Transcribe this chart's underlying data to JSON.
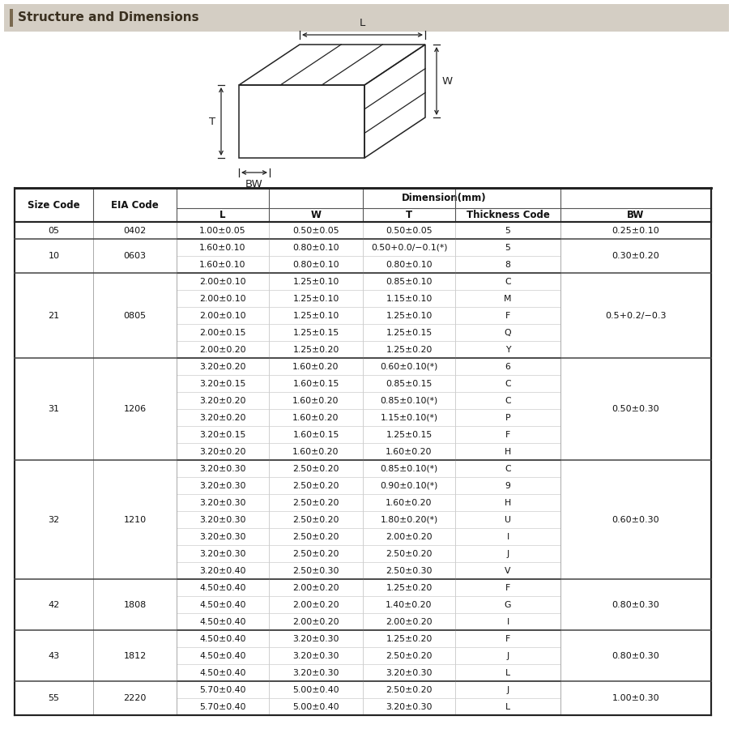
{
  "title": "Structure and Dimensions",
  "title_bar_color": "#d4cec4",
  "title_accent_color": "#7a6a50",
  "bg_color": "#ffffff",
  "rows": [
    [
      "05",
      "0402",
      "1.00±0.05",
      "0.50±0.05",
      "0.50±0.05",
      "5",
      "0.25±0.10"
    ],
    [
      "10",
      "0603",
      "1.60±0.10",
      "0.80±0.10",
      "0.50+0.0/−0.1(*)",
      "5",
      "0.30±0.20"
    ],
    [
      "",
      "",
      "1.60±0.10",
      "0.80±0.10",
      "0.80±0.10",
      "8",
      ""
    ],
    [
      "21",
      "0805",
      "2.00±0.10",
      "1.25±0.10",
      "0.85±0.10",
      "C",
      "0.5+0.2/−0.3"
    ],
    [
      "",
      "",
      "2.00±0.10",
      "1.25±0.10",
      "1.15±0.10",
      "M",
      ""
    ],
    [
      "",
      "",
      "2.00±0.10",
      "1.25±0.10",
      "1.25±0.10",
      "F",
      ""
    ],
    [
      "",
      "",
      "2.00±0.15",
      "1.25±0.15",
      "1.25±0.15",
      "Q",
      ""
    ],
    [
      "",
      "",
      "2.00±0.20",
      "1.25±0.20",
      "1.25±0.20",
      "Y",
      ""
    ],
    [
      "31",
      "1206",
      "3.20±0.20",
      "1.60±0.20",
      "0.60±0.10(*)",
      "6",
      "0.50±0.30"
    ],
    [
      "",
      "",
      "3.20±0.15",
      "1.60±0.15",
      "0.85±0.15",
      "C",
      ""
    ],
    [
      "",
      "",
      "3.20±0.20",
      "1.60±0.20",
      "0.85±0.10(*)",
      "C",
      ""
    ],
    [
      "",
      "",
      "3.20±0.20",
      "1.60±0.20",
      "1.15±0.10(*)",
      "P",
      ""
    ],
    [
      "",
      "",
      "3.20±0.15",
      "1.60±0.15",
      "1.25±0.15",
      "F",
      ""
    ],
    [
      "",
      "",
      "3.20±0.20",
      "1.60±0.20",
      "1.60±0.20",
      "H",
      ""
    ],
    [
      "32",
      "1210",
      "3.20±0.30",
      "2.50±0.20",
      "0.85±0.10(*)",
      "C",
      "0.60±0.30"
    ],
    [
      "",
      "",
      "3.20±0.30",
      "2.50±0.20",
      "0.90±0.10(*)",
      "9",
      ""
    ],
    [
      "",
      "",
      "3.20±0.30",
      "2.50±0.20",
      "1.60±0.20",
      "H",
      ""
    ],
    [
      "",
      "",
      "3.20±0.30",
      "2.50±0.20",
      "1.80±0.20(*)",
      "U",
      ""
    ],
    [
      "",
      "",
      "3.20±0.30",
      "2.50±0.20",
      "2.00±0.20",
      "I",
      ""
    ],
    [
      "",
      "",
      "3.20±0.30",
      "2.50±0.20",
      "2.50±0.20",
      "J",
      ""
    ],
    [
      "",
      "",
      "3.20±0.40",
      "2.50±0.30",
      "2.50±0.30",
      "V",
      ""
    ],
    [
      "42",
      "1808",
      "4.50±0.40",
      "2.00±0.20",
      "1.25±0.20",
      "F",
      "0.80±0.30"
    ],
    [
      "",
      "",
      "4.50±0.40",
      "2.00±0.20",
      "1.40±0.20",
      "G",
      ""
    ],
    [
      "",
      "",
      "4.50±0.40",
      "2.00±0.20",
      "2.00±0.20",
      "I",
      ""
    ],
    [
      "43",
      "1812",
      "4.50±0.40",
      "3.20±0.30",
      "1.25±0.20",
      "F",
      "0.80±0.30"
    ],
    [
      "",
      "",
      "4.50±0.40",
      "3.20±0.30",
      "2.50±0.20",
      "J",
      ""
    ],
    [
      "",
      "",
      "4.50±0.40",
      "3.20±0.30",
      "3.20±0.30",
      "L",
      ""
    ],
    [
      "55",
      "2220",
      "5.70±0.40",
      "5.00±0.40",
      "2.50±0.20",
      "J",
      "1.00±0.30"
    ],
    [
      "",
      "",
      "5.70±0.40",
      "5.00±0.40",
      "3.20±0.30",
      "L",
      ""
    ]
  ],
  "group_rows": {
    "05": [
      0
    ],
    "10": [
      1,
      2
    ],
    "21": [
      3,
      4,
      5,
      6,
      7
    ],
    "31": [
      8,
      9,
      10,
      11,
      12,
      13
    ],
    "32": [
      14,
      15,
      16,
      17,
      18,
      19,
      20
    ],
    "42": [
      21,
      22,
      23
    ],
    "43": [
      24,
      25,
      26
    ],
    "55": [
      27,
      28
    ]
  },
  "bw_values": {
    "05": "0.25±0.10",
    "10": "0.30±0.20",
    "21": "0.5+0.2/−0.3",
    "31": "0.50±0.30",
    "32": "0.60±0.30",
    "42": "0.80±0.30",
    "43": "0.80±0.30",
    "55": "1.00±0.30"
  },
  "size_values": {
    "05": "05",
    "10": "10",
    "21": "21",
    "31": "31",
    "32": "32",
    "42": "42",
    "43": "43",
    "55": "55"
  },
  "eia_values": {
    "05": "0402",
    "10": "0603",
    "21": "0805",
    "31": "1206",
    "32": "1210",
    "42": "1808",
    "43": "1812",
    "55": "2220"
  }
}
